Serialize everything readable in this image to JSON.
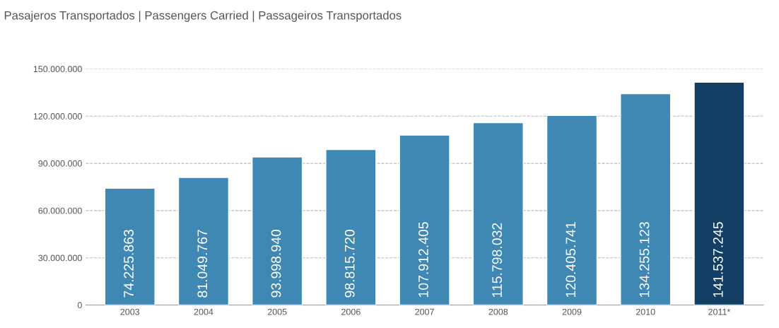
{
  "chart_data": {
    "type": "bar",
    "title": "Pasajeros Transportados | Passengers Carried | Passageiros Transportados",
    "categories": [
      "2003",
      "2004",
      "2005",
      "2006",
      "2007",
      "2008",
      "2009",
      "2010",
      "2011*"
    ],
    "values": [
      74225863,
      81049767,
      93998940,
      98815720,
      107912405,
      115798032,
      120405741,
      134255123,
      141537245
    ],
    "colors": [
      "#3f88b3",
      "#3f88b3",
      "#3f88b3",
      "#3f88b3",
      "#3f88b3",
      "#3f88b3",
      "#3f88b3",
      "#3f88b3",
      "#123f63"
    ],
    "value_labels": [
      "74.225.863",
      "81.049.767",
      "93.998.940",
      "98.815.720",
      "107.912.405",
      "115.798.032",
      "120.405.741",
      "134.255.123",
      "141.537.245"
    ],
    "ylim": [
      0,
      150000000
    ],
    "yticks": [
      {
        "value": 0,
        "label": "0"
      },
      {
        "value": 30000000,
        "label": "30.000.000"
      },
      {
        "value": 60000000,
        "label": "60.000.000"
      },
      {
        "value": 90000000,
        "label": "90.000.000"
      },
      {
        "value": 120000000,
        "label": "120.000.000"
      },
      {
        "value": 150000000,
        "label": "150.000.000"
      }
    ],
    "grid": "y"
  }
}
